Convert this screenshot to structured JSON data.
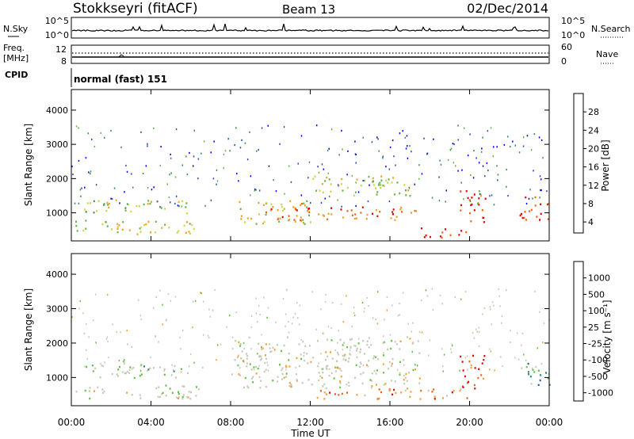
{
  "header": {
    "station": "Stokkseyri (fitACF)",
    "beam": "Beam 13",
    "date": "02/Dec/2014"
  },
  "aux_panels": {
    "nsky_label": "N.Sky",
    "nsearch_label": "N.Search",
    "noise_ticks_left": [
      "10^5",
      "10^0"
    ],
    "noise_ticks_right": [
      "10^5",
      "10^0"
    ],
    "freq_label_1": "Freq.",
    "freq_label_2": "[MHz]",
    "freq_ticks": [
      "12",
      "8"
    ],
    "nave_label": "Nave",
    "nave_ticks": [
      "60",
      "0"
    ],
    "cpid_label": "CPID",
    "cpid_value": "normal (fast) 151"
  },
  "chart_data": [
    {
      "type": "heatmap",
      "panel": "power",
      "ylabel": "Slant Range [km]",
      "yticks": [
        "1000",
        "2000",
        "3000",
        "4000"
      ],
      "ylim": [
        180,
        4600
      ],
      "xlim": [
        0,
        24
      ],
      "colorbar_label": "Power [dB]",
      "colorbar_ticks": [
        "28",
        "24",
        "20",
        "16",
        "12",
        "8",
        "4"
      ],
      "colorscale": [
        "#0000ff",
        "#2c4bb4",
        "#3e8c5a",
        "#66b34a",
        "#c8d640",
        "#f0a020",
        "#f06010",
        "#e00000"
      ],
      "features": [
        {
          "t": [
            0.2,
            6.5
          ],
          "r": [
            400,
            800
          ],
          "level": 0.55
        },
        {
          "t": [
            0.5,
            6.0
          ],
          "r": [
            1000,
            1400
          ],
          "level": 0.5
        },
        {
          "t": [
            8.0,
            12.0
          ],
          "r": [
            700,
            1400
          ],
          "level": 0.6
        },
        {
          "t": [
            10.0,
            17.5
          ],
          "r": [
            800,
            1200
          ],
          "level": 0.8
        },
        {
          "t": [
            12.0,
            17.0
          ],
          "r": [
            1500,
            2100
          ],
          "level": 0.55
        },
        {
          "t": [
            17.5,
            19.8
          ],
          "r": [
            300,
            600
          ],
          "level": 0.95
        },
        {
          "t": [
            19.5,
            20.8
          ],
          "r": [
            700,
            1700
          ],
          "level": 0.9
        },
        {
          "t": [
            22.5,
            24.0
          ],
          "r": [
            800,
            1500
          ],
          "level": 0.9
        }
      ]
    },
    {
      "type": "heatmap",
      "panel": "velocity",
      "ylabel": "Slant Range [km]",
      "yticks": [
        "1000",
        "2000",
        "3000",
        "4000"
      ],
      "ylim": [
        180,
        4600
      ],
      "xlim": [
        0,
        24
      ],
      "xlabel": "Time UT",
      "xticks": [
        "00:00",
        "04:00",
        "08:00",
        "12:00",
        "16:00",
        "20:00",
        "00:00"
      ],
      "colorbar_label": "Velocity [m s⁻¹]",
      "colorbar_ticks": [
        "1000",
        "500",
        "100",
        "25",
        "-25",
        "-100",
        "-500",
        "-1000"
      ],
      "colorscale": [
        "#e00000",
        "#ee6010",
        "#f4a030",
        "#c8c8b8",
        "#c8c8b8",
        "#60c040",
        "#2e8a6a",
        "#3050b0"
      ],
      "features": [
        {
          "t": [
            0.2,
            6.5
          ],
          "r": [
            400,
            800
          ],
          "level": 0.5
        },
        {
          "t": [
            0.5,
            6.0
          ],
          "r": [
            1000,
            1400
          ],
          "level": 0.6
        },
        {
          "t": [
            8.0,
            17.5
          ],
          "r": [
            700,
            2200
          ],
          "level": 0.5
        },
        {
          "t": [
            12.0,
            20.0
          ],
          "r": [
            400,
            700
          ],
          "level": 0.25
        },
        {
          "t": [
            19.5,
            20.8
          ],
          "r": [
            700,
            1700
          ],
          "level": 0.1
        },
        {
          "t": [
            22.5,
            24.0
          ],
          "r": [
            800,
            1500
          ],
          "level": 0.75
        }
      ]
    }
  ]
}
